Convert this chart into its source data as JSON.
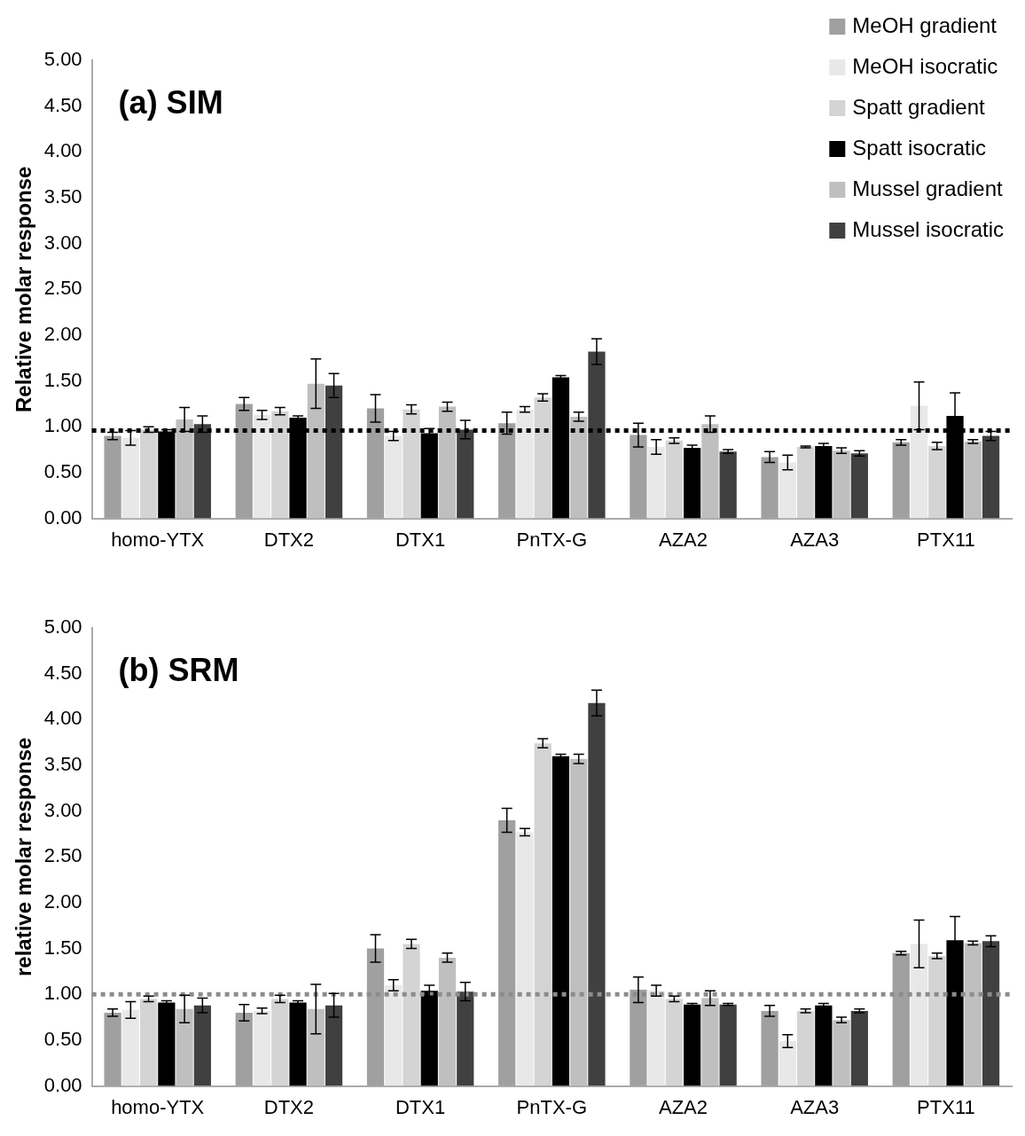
{
  "chart_data": [
    {
      "type": "bar",
      "title": "(a) SIM",
      "ylabel": "Relative molar response",
      "categories": [
        "homo-YTX",
        "DTX2",
        "DTX1",
        "PnTX-G",
        "AZA2",
        "AZA3",
        "PTX11"
      ],
      "series": [
        {
          "name": "MeOH gradient",
          "color": "#a0a0a0",
          "values": [
            0.9,
            1.25,
            1.2,
            1.04,
            0.91,
            0.67,
            0.83
          ],
          "errors": [
            0.04,
            0.07,
            0.15,
            0.12,
            0.13,
            0.06,
            0.03
          ]
        },
        {
          "name": "MeOH isocratic",
          "color": "#e8e8e8",
          "values": [
            0.88,
            1.13,
            0.9,
            1.19,
            0.78,
            0.61,
            1.23
          ],
          "errors": [
            0.08,
            0.05,
            0.05,
            0.03,
            0.08,
            0.08,
            0.26
          ]
        },
        {
          "name": "Spatt gradient",
          "color": "#d4d4d4",
          "values": [
            0.97,
            1.17,
            1.19,
            1.32,
            0.85,
            0.78,
            0.79
          ],
          "errors": [
            0.03,
            0.04,
            0.05,
            0.04,
            0.03,
            0.01,
            0.04
          ]
        },
        {
          "name": "Spatt isocratic",
          "color": "#000000",
          "values": [
            0.95,
            1.1,
            0.93,
            1.54,
            0.77,
            0.79,
            1.12
          ],
          "errors": [
            0.02,
            0.02,
            0.05,
            0.02,
            0.03,
            0.03,
            0.25
          ]
        },
        {
          "name": "Mussel gradient",
          "color": "#bfbfbf",
          "values": [
            1.08,
            1.47,
            1.22,
            1.11,
            1.03,
            0.74,
            0.84
          ],
          "errors": [
            0.13,
            0.27,
            0.05,
            0.05,
            0.09,
            0.03,
            0.02
          ]
        },
        {
          "name": "Mussel isocratic",
          "color": "#404040",
          "values": [
            1.03,
            1.45,
            0.97,
            1.82,
            0.73,
            0.71,
            0.9
          ],
          "errors": [
            0.09,
            0.13,
            0.1,
            0.14,
            0.02,
            0.03,
            0.05
          ]
        }
      ],
      "ylim": [
        0,
        5
      ],
      "yticks": [
        {
          "value": 0,
          "label": "0.00"
        },
        {
          "value": 0.5,
          "label": "0.50"
        },
        {
          "value": 1,
          "label": "1.00"
        },
        {
          "value": 1.5,
          "label": "1.50"
        },
        {
          "value": 2,
          "label": "2.00"
        },
        {
          "value": 2.5,
          "label": "2.50"
        },
        {
          "value": 3,
          "label": "3.00"
        },
        {
          "value": 3.5,
          "label": "3.50"
        },
        {
          "value": 4,
          "label": "4.00"
        },
        {
          "value": 4.5,
          "label": "4.50"
        },
        {
          "value": 5,
          "label": "5.00"
        }
      ],
      "ref_lines": [
        {
          "axis": "y",
          "value": 0.96,
          "color": "#000000",
          "line_style": "dotted"
        }
      ],
      "legend": "top right",
      "grid": false
    },
    {
      "type": "bar",
      "title": "(b) SRM",
      "ylabel": "relative molar response",
      "categories": [
        "homo-YTX",
        "DTX2",
        "DTX1",
        "PnTX-G",
        "AZA2",
        "AZA3",
        "PTX11"
      ],
      "series": [
        {
          "color": "#a0a0a0",
          "values": [
            0.8,
            0.8,
            1.5,
            2.9,
            1.05,
            0.82,
            1.45
          ],
          "errors": [
            0.04,
            0.09,
            0.15,
            0.13,
            0.14,
            0.06,
            0.02
          ]
        },
        {
          "color": "#e8e8e8",
          "values": [
            0.83,
            0.82,
            1.1,
            2.77,
            1.04,
            0.49,
            1.55
          ],
          "errors": [
            0.09,
            0.03,
            0.06,
            0.04,
            0.06,
            0.07,
            0.26
          ]
        },
        {
          "color": "#d4d4d4",
          "values": [
            0.95,
            0.95,
            1.55,
            3.74,
            0.95,
            0.82,
            1.42
          ],
          "errors": [
            0.03,
            0.04,
            0.05,
            0.05,
            0.03,
            0.02,
            0.03
          ]
        },
        {
          "color": "#000000",
          "values": [
            0.91,
            0.91,
            1.04,
            3.6,
            0.89,
            0.88,
            1.59
          ],
          "errors": [
            0.02,
            0.02,
            0.06,
            0.02,
            0.01,
            0.02,
            0.26
          ]
        },
        {
          "color": "#bfbfbf",
          "values": [
            0.84,
            0.84,
            1.4,
            3.57,
            0.96,
            0.72,
            1.56
          ],
          "errors": [
            0.15,
            0.27,
            0.05,
            0.05,
            0.08,
            0.03,
            0.02
          ]
        },
        {
          "color": "#404040",
          "values": [
            0.88,
            0.88,
            1.03,
            4.18,
            0.89,
            0.82,
            1.58
          ],
          "errors": [
            0.08,
            0.13,
            0.1,
            0.14,
            0.01,
            0.02,
            0.06
          ]
        }
      ],
      "ylim": [
        0,
        5
      ],
      "yticks": [
        {
          "value": 0,
          "label": "0.00"
        },
        {
          "value": 0.5,
          "label": "0.50"
        },
        {
          "value": 1,
          "label": "1.00"
        },
        {
          "value": 1.5,
          "label": "1.50"
        },
        {
          "value": 2,
          "label": "2.00"
        },
        {
          "value": 2.5,
          "label": "2.50"
        },
        {
          "value": 3,
          "label": "3.00"
        },
        {
          "value": 3.5,
          "label": "3.50"
        },
        {
          "value": 4,
          "label": "4.00"
        },
        {
          "value": 4.5,
          "label": "4.50"
        },
        {
          "value": 5,
          "label": "5.00"
        }
      ],
      "ref_lines": [
        {
          "axis": "y",
          "value": 1.0,
          "color": "#8c8c8c",
          "line_style": "dotted"
        }
      ],
      "grid": false
    }
  ]
}
